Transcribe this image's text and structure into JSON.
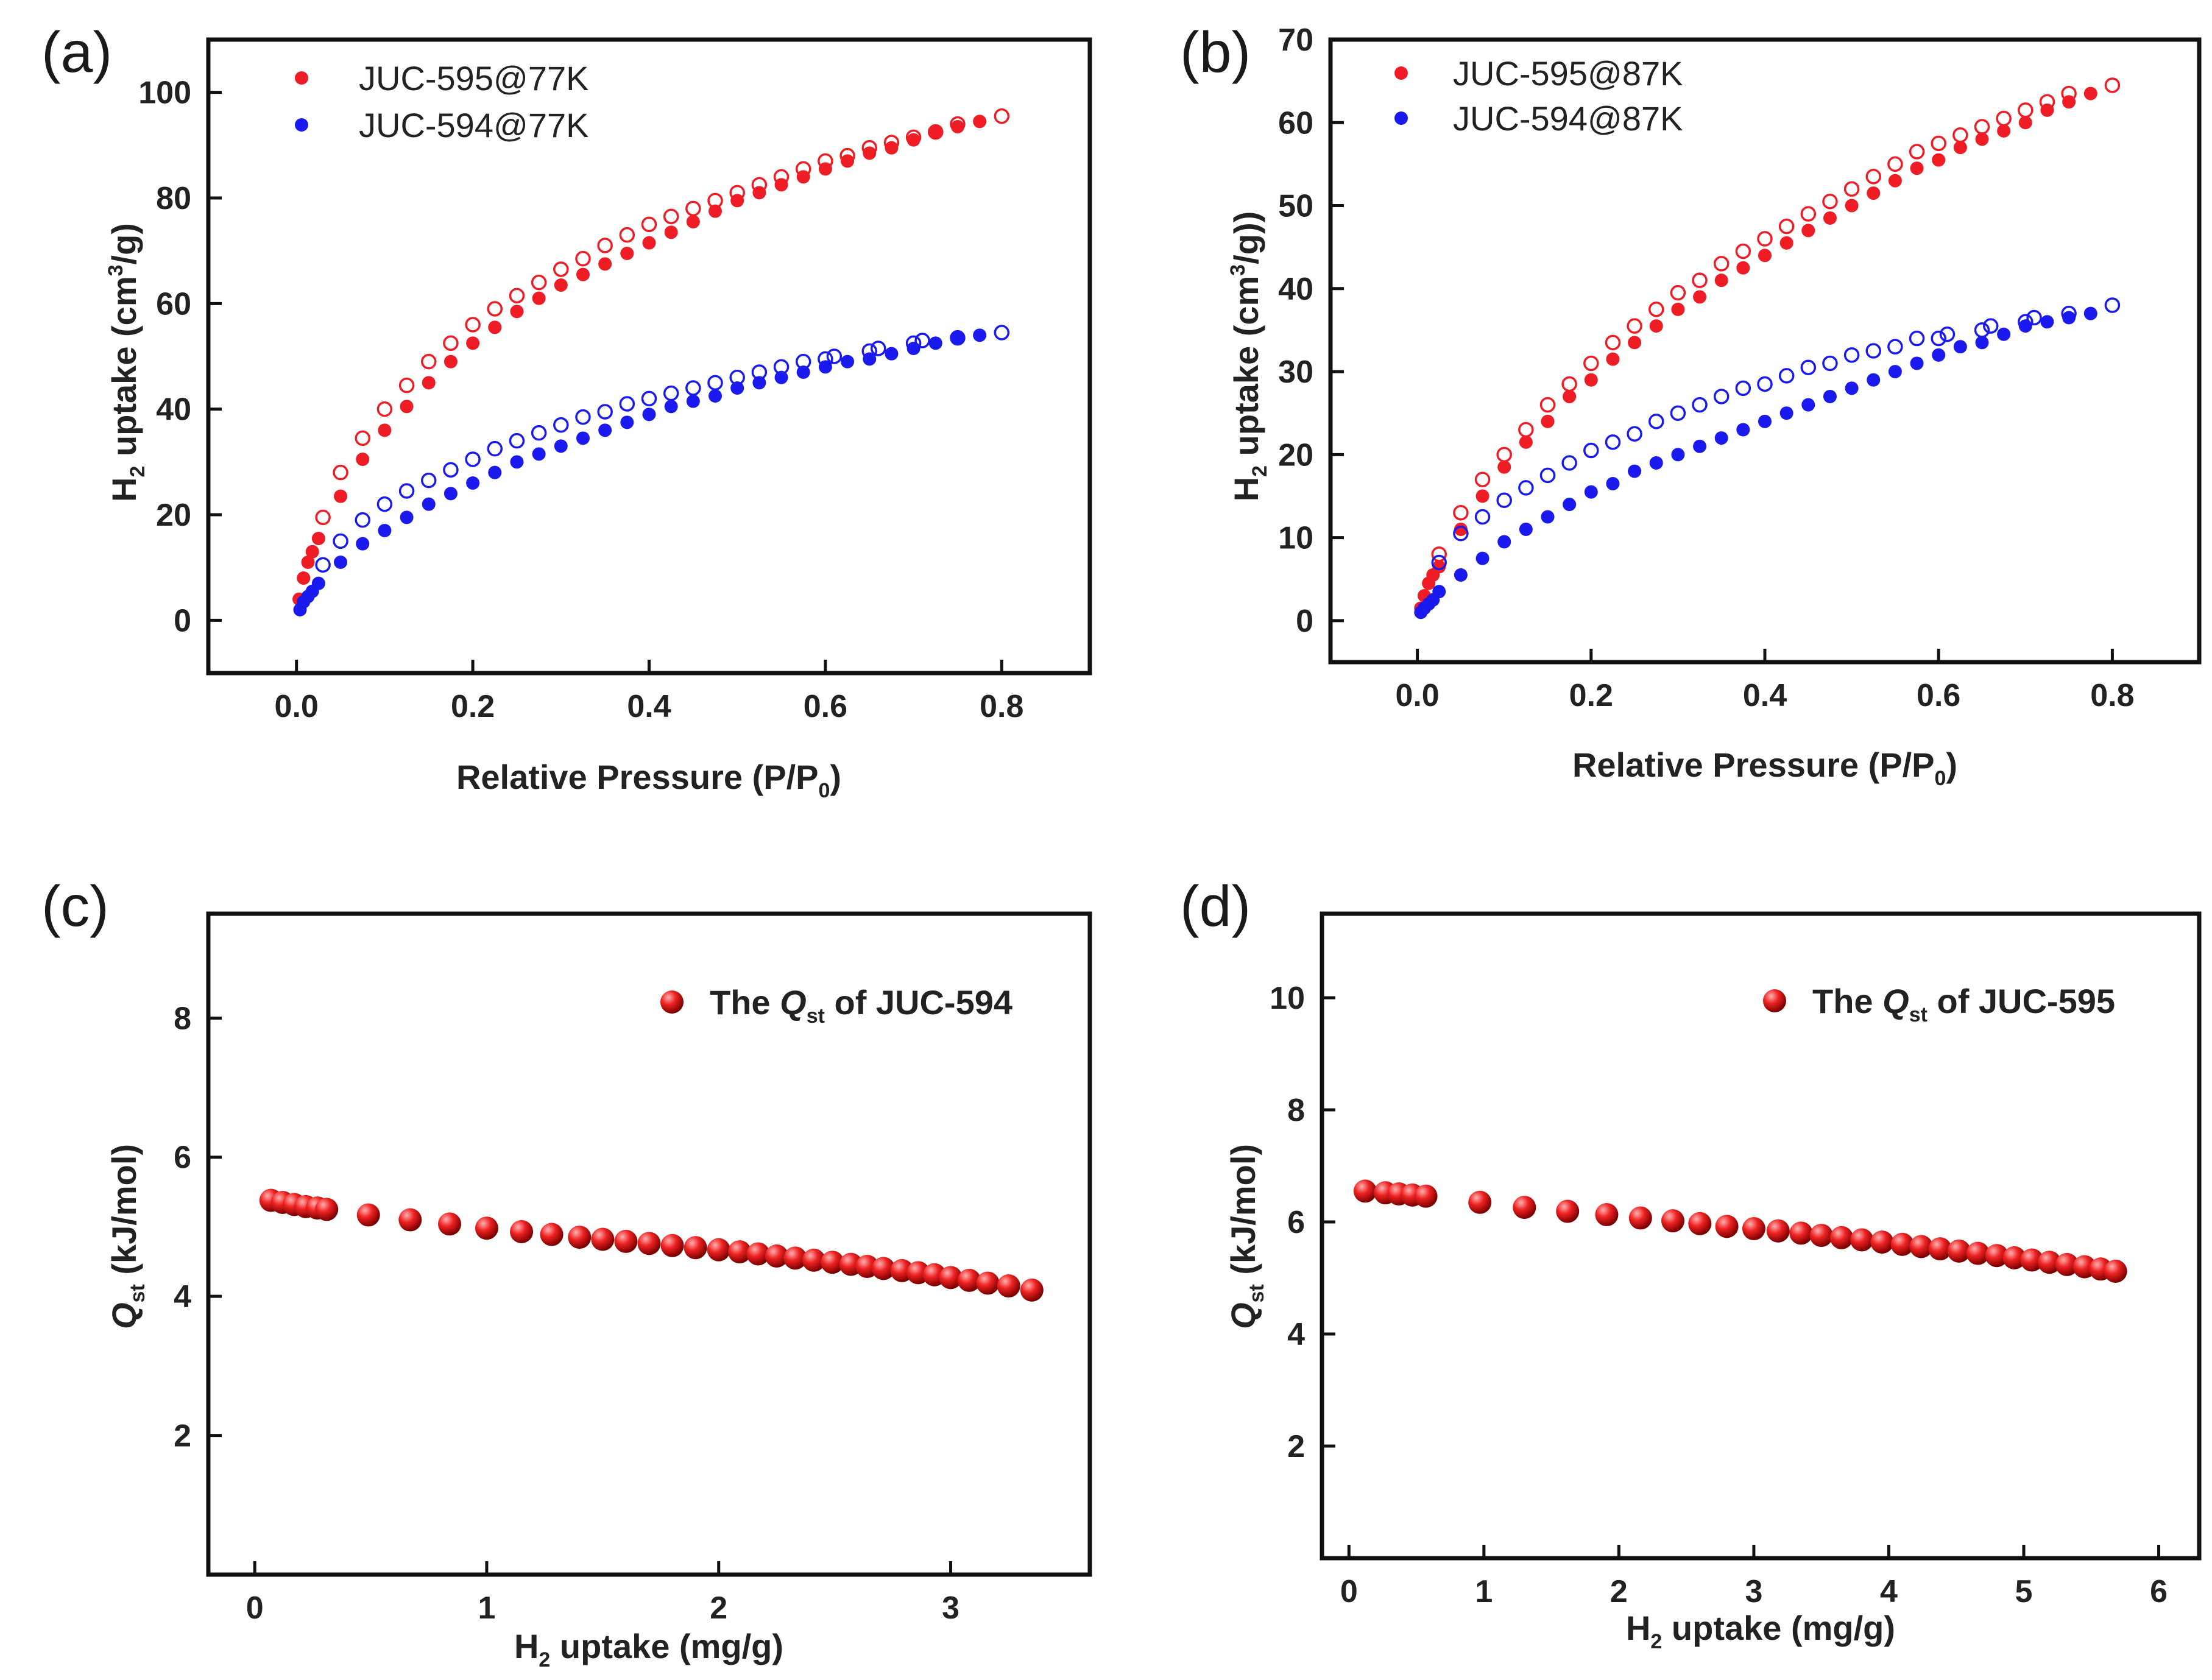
{
  "chart_data": [
    {
      "panel": "(a)",
      "type": "scatter",
      "title": "",
      "xlabel": "Relative Pressure (P/P0)",
      "xlabel_main": "Relative Pressure (P/P",
      "xlabel_sub": "0",
      "xlabel_tail": ")",
      "ylabel": "H2 uptake (cm3/g)",
      "ylabel_pre": "H",
      "ylabel_sub": "2",
      "ylabel_mid": " uptake (cm",
      "ylabel_sup": "3",
      "ylabel_tail": "/g)",
      "xlim": [
        -0.1,
        0.9
      ],
      "ylim": [
        -10,
        110
      ],
      "xticks": [
        0.0,
        0.2,
        0.4,
        0.6,
        0.8
      ],
      "xtick_labels": [
        "0.0",
        "0.2",
        "0.4",
        "0.6",
        "0.8"
      ],
      "yticks": [
        0,
        20,
        40,
        60,
        80,
        100
      ],
      "ytick_labels": [
        "0",
        "20",
        "40",
        "60",
        "80",
        "100"
      ],
      "legend": [
        {
          "label": "JUC-595@77K",
          "color": "#ee1c24"
        },
        {
          "label": "JUC-594@77K",
          "color": "#1a1aee"
        }
      ],
      "series": [
        {
          "name": "JUC-595@77K adsorption",
          "color": "#ee1c24",
          "filled": true,
          "x": [
            0.003,
            0.008,
            0.013,
            0.018,
            0.025,
            0.05,
            0.075,
            0.1,
            0.125,
            0.15,
            0.175,
            0.2,
            0.225,
            0.25,
            0.275,
            0.3,
            0.325,
            0.35,
            0.375,
            0.4,
            0.425,
            0.45,
            0.475,
            0.5,
            0.525,
            0.55,
            0.575,
            0.6,
            0.625,
            0.65,
            0.675,
            0.7,
            0.725,
            0.75,
            0.775
          ],
          "y": [
            4,
            8,
            11,
            13,
            15.5,
            23.5,
            30.5,
            36,
            40.5,
            45,
            49,
            52.5,
            55.5,
            58.5,
            61,
            63.5,
            65.5,
            67.5,
            69.5,
            71.5,
            73.5,
            75.5,
            77.5,
            79.5,
            81,
            82.5,
            84,
            85.5,
            87,
            88.5,
            89.5,
            91,
            92.5,
            93.5,
            94.5
          ]
        },
        {
          "name": "JUC-595@77K desorption",
          "color": "#ee1c24",
          "filled": false,
          "x": [
            0.03,
            0.05,
            0.075,
            0.1,
            0.125,
            0.15,
            0.175,
            0.2,
            0.225,
            0.25,
            0.275,
            0.3,
            0.325,
            0.35,
            0.375,
            0.4,
            0.425,
            0.45,
            0.475,
            0.5,
            0.525,
            0.55,
            0.575,
            0.6,
            0.625,
            0.65,
            0.675,
            0.7,
            0.725,
            0.75,
            0.8
          ],
          "y": [
            19.5,
            28,
            34.5,
            40,
            44.5,
            49,
            52.5,
            56,
            59,
            61.5,
            64,
            66.5,
            68.5,
            71,
            73,
            75,
            76.5,
            78,
            79.5,
            81,
            82.5,
            84,
            85.5,
            87,
            88,
            89.5,
            90.5,
            91.5,
            92.5,
            94,
            95.5
          ]
        },
        {
          "name": "JUC-594@77K adsorption",
          "color": "#1a1aee",
          "filled": true,
          "x": [
            0.004,
            0.008,
            0.013,
            0.018,
            0.025,
            0.05,
            0.075,
            0.1,
            0.125,
            0.15,
            0.175,
            0.2,
            0.225,
            0.25,
            0.275,
            0.3,
            0.325,
            0.35,
            0.375,
            0.4,
            0.425,
            0.45,
            0.475,
            0.5,
            0.525,
            0.55,
            0.575,
            0.6,
            0.625,
            0.65,
            0.675,
            0.7,
            0.725,
            0.75,
            0.775
          ],
          "y": [
            2,
            3.5,
            4.5,
            5.5,
            7,
            11,
            14.5,
            17,
            19.5,
            22,
            24,
            26,
            28,
            30,
            31.5,
            33,
            34.5,
            36,
            37.5,
            39,
            40.5,
            41.5,
            42.5,
            44,
            45,
            46,
            47,
            48,
            49,
            49.5,
            50.5,
            51.5,
            52.5,
            53.5,
            54
          ]
        },
        {
          "name": "JUC-594@77K desorption",
          "color": "#1a1aee",
          "filled": false,
          "x": [
            0.03,
            0.05,
            0.075,
            0.1,
            0.125,
            0.15,
            0.175,
            0.2,
            0.225,
            0.25,
            0.275,
            0.3,
            0.325,
            0.35,
            0.375,
            0.4,
            0.425,
            0.45,
            0.475,
            0.5,
            0.525,
            0.55,
            0.575,
            0.6,
            0.61,
            0.65,
            0.66,
            0.7,
            0.71,
            0.75,
            0.8
          ],
          "y": [
            10.5,
            15,
            19,
            22,
            24.5,
            26.5,
            28.5,
            30.5,
            32.5,
            34,
            35.5,
            37,
            38.5,
            39.5,
            41,
            42,
            43,
            44,
            45,
            46,
            47,
            48,
            49,
            49.5,
            50,
            51,
            51.5,
            52.5,
            53,
            53.5,
            54.5
          ]
        }
      ]
    },
    {
      "panel": "(b)",
      "type": "scatter",
      "title": "",
      "xlabel": "Relative Pressure (P/P0)",
      "xlabel_main": "Relative Pressure (P/P",
      "xlabel_sub": "0",
      "xlabel_tail": ")",
      "ylabel": "H2 uptake (cm3/g))",
      "ylabel_pre": "H",
      "ylabel_sub": "2",
      "ylabel_mid": " uptake (cm",
      "ylabel_sup": "3",
      "ylabel_tail": "/g))",
      "xlim": [
        -0.1,
        0.9
      ],
      "ylim": [
        -5,
        70
      ],
      "xticks": [
        0.0,
        0.2,
        0.4,
        0.6,
        0.8
      ],
      "xtick_labels": [
        "0.0",
        "0.2",
        "0.4",
        "0.6",
        "0.8"
      ],
      "yticks": [
        0,
        10,
        20,
        30,
        40,
        50,
        60,
        70
      ],
      "ytick_labels": [
        "0",
        "10",
        "20",
        "30",
        "40",
        "50",
        "60",
        "70"
      ],
      "legend": [
        {
          "label": "JUC-595@87K",
          "color": "#ee1c24"
        },
        {
          "label": "JUC-594@87K",
          "color": "#1a1aee"
        }
      ],
      "series": [
        {
          "name": "JUC-595@87K adsorption",
          "color": "#ee1c24",
          "filled": true,
          "x": [
            0.004,
            0.008,
            0.013,
            0.018,
            0.025,
            0.05,
            0.075,
            0.1,
            0.125,
            0.15,
            0.175,
            0.2,
            0.225,
            0.25,
            0.275,
            0.3,
            0.325,
            0.35,
            0.375,
            0.4,
            0.425,
            0.45,
            0.475,
            0.5,
            0.525,
            0.55,
            0.575,
            0.6,
            0.625,
            0.65,
            0.675,
            0.7,
            0.725,
            0.75,
            0.775
          ],
          "y": [
            1.5,
            3,
            4.5,
            5.5,
            6.5,
            11,
            15,
            18.5,
            21.5,
            24,
            27,
            29,
            31.5,
            33.5,
            35.5,
            37.5,
            39,
            41,
            42.5,
            44,
            45.5,
            47,
            48.5,
            50,
            51.5,
            53,
            54.5,
            55.5,
            57,
            58,
            59,
            60,
            61.5,
            62.5,
            63.5
          ]
        },
        {
          "name": "JUC-595@87K desorption",
          "color": "#ee1c24",
          "filled": false,
          "x": [
            0.025,
            0.05,
            0.075,
            0.1,
            0.125,
            0.15,
            0.175,
            0.2,
            0.225,
            0.25,
            0.275,
            0.3,
            0.325,
            0.35,
            0.375,
            0.4,
            0.425,
            0.45,
            0.475,
            0.5,
            0.525,
            0.55,
            0.575,
            0.6,
            0.625,
            0.65,
            0.675,
            0.7,
            0.725,
            0.75,
            0.8
          ],
          "y": [
            8,
            13,
            17,
            20,
            23,
            26,
            28.5,
            31,
            33.5,
            35.5,
            37.5,
            39.5,
            41,
            43,
            44.5,
            46,
            47.5,
            49,
            50.5,
            52,
            53.5,
            55,
            56.5,
            57.5,
            58.5,
            59.5,
            60.5,
            61.5,
            62.5,
            63.5,
            64.5
          ]
        },
        {
          "name": "JUC-594@87K adsorption",
          "color": "#1a1aee",
          "filled": true,
          "x": [
            0.004,
            0.008,
            0.013,
            0.018,
            0.025,
            0.05,
            0.075,
            0.1,
            0.125,
            0.15,
            0.175,
            0.2,
            0.225,
            0.25,
            0.275,
            0.3,
            0.325,
            0.35,
            0.375,
            0.4,
            0.425,
            0.45,
            0.475,
            0.5,
            0.525,
            0.55,
            0.575,
            0.6,
            0.625,
            0.65,
            0.675,
            0.7,
            0.725,
            0.75,
            0.775
          ],
          "y": [
            1,
            1.5,
            2,
            2.5,
            3.5,
            5.5,
            7.5,
            9.5,
            11,
            12.5,
            14,
            15.5,
            16.5,
            18,
            19,
            20,
            21,
            22,
            23,
            24,
            25,
            26,
            27,
            28,
            29,
            30,
            31,
            32,
            33,
            33.5,
            34.5,
            35.5,
            36,
            36.5,
            37
          ]
        },
        {
          "name": "JUC-594@87K desorption",
          "color": "#1a1aee",
          "filled": false,
          "x": [
            0.025,
            0.05,
            0.075,
            0.1,
            0.125,
            0.15,
            0.175,
            0.2,
            0.225,
            0.25,
            0.275,
            0.3,
            0.325,
            0.35,
            0.375,
            0.4,
            0.425,
            0.45,
            0.475,
            0.5,
            0.525,
            0.55,
            0.575,
            0.6,
            0.61,
            0.65,
            0.66,
            0.7,
            0.71,
            0.75,
            0.8
          ],
          "y": [
            7,
            10.5,
            12.5,
            14.5,
            16,
            17.5,
            19,
            20.5,
            21.5,
            22.5,
            24,
            25,
            26,
            27,
            28,
            28.5,
            29.5,
            30.5,
            31,
            32,
            32.5,
            33,
            34,
            34,
            34.5,
            35,
            35.5,
            36,
            36.5,
            37,
            38
          ]
        }
      ]
    },
    {
      "panel": "(c)",
      "type": "scatter",
      "title": "",
      "xlabel": "H2 uptake (mg/g)",
      "xlabel_pre": "H",
      "xlabel_sub": "2",
      "xlabel_tail": " uptake (mg/g)",
      "ylabel": "Qst (kJ/mol)",
      "ylabel_q": "Q",
      "ylabel_sub": "st",
      "ylabel_tail": " (kJ/mol)",
      "xlim": [
        -0.2,
        3.6
      ],
      "ylim": [
        0,
        9.5
      ],
      "xticks": [
        0,
        1,
        2,
        3
      ],
      "xtick_labels": [
        "0",
        "1",
        "2",
        "3"
      ],
      "yticks": [
        2,
        4,
        6,
        8
      ],
      "ytick_labels": [
        "2",
        "4",
        "6",
        "8"
      ],
      "legend": [
        {
          "label": "The Qst of JUC-594",
          "prefix": "The ",
          "q": "Q",
          "sub": "st",
          "suffix": " of JUC-594",
          "color": "#dd1111"
        }
      ],
      "series": [
        {
          "name": "The Qst of JUC-594",
          "color": "#dd1111",
          "filled": true,
          "x": [
            0.07,
            0.12,
            0.17,
            0.22,
            0.27,
            0.31,
            0.49,
            0.67,
            0.84,
            1.0,
            1.15,
            1.28,
            1.4,
            1.5,
            1.6,
            1.7,
            1.8,
            1.9,
            2.0,
            2.09,
            2.17,
            2.25,
            2.33,
            2.41,
            2.49,
            2.57,
            2.64,
            2.71,
            2.79,
            2.86,
            2.93,
            3.0,
            3.08,
            3.16,
            3.25,
            3.35
          ],
          "y": [
            5.38,
            5.35,
            5.32,
            5.29,
            5.27,
            5.25,
            5.17,
            5.1,
            5.04,
            4.98,
            4.93,
            4.89,
            4.85,
            4.82,
            4.79,
            4.76,
            4.73,
            4.7,
            4.67,
            4.64,
            4.61,
            4.58,
            4.55,
            4.52,
            4.49,
            4.46,
            4.43,
            4.4,
            4.37,
            4.34,
            4.31,
            4.27,
            4.23,
            4.19,
            4.15,
            4.09
          ]
        }
      ]
    },
    {
      "panel": "(d)",
      "type": "scatter",
      "title": "",
      "xlabel": "H2 uptake (mg/g)",
      "xlabel_pre": "H",
      "xlabel_sub": "2",
      "xlabel_tail": " uptake (mg/g)",
      "ylabel": "Qst (kJ/mol)",
      "ylabel_q": "Q",
      "ylabel_sub": "st",
      "ylabel_tail": " (kJ/mol)",
      "xlim": [
        -0.2,
        6.3
      ],
      "ylim": [
        0,
        11.5
      ],
      "xticks": [
        0,
        1,
        2,
        3,
        4,
        5,
        6
      ],
      "xtick_labels": [
        "0",
        "1",
        "2",
        "3",
        "4",
        "5",
        "6"
      ],
      "yticks": [
        2,
        4,
        6,
        8,
        10
      ],
      "ytick_labels": [
        "2",
        "4",
        "6",
        "8",
        "10"
      ],
      "legend": [
        {
          "label": "The Qst of JUC-595",
          "prefix": "The ",
          "q": "Q",
          "sub": "st",
          "suffix": " of JUC-595",
          "color": "#dd1111"
        }
      ],
      "series": [
        {
          "name": "The Qst of JUC-595",
          "color": "#dd1111",
          "filled": true,
          "x": [
            0.12,
            0.27,
            0.37,
            0.47,
            0.57,
            0.97,
            1.3,
            1.62,
            1.91,
            2.16,
            2.4,
            2.6,
            2.8,
            3.0,
            3.18,
            3.35,
            3.5,
            3.65,
            3.8,
            3.95,
            4.1,
            4.24,
            4.38,
            4.52,
            4.66,
            4.8,
            4.93,
            5.06,
            5.19,
            5.32,
            5.45,
            5.57,
            5.68
          ],
          "y": [
            6.55,
            6.52,
            6.5,
            6.48,
            6.46,
            6.35,
            6.26,
            6.19,
            6.13,
            6.07,
            6.02,
            5.97,
            5.92,
            5.88,
            5.84,
            5.8,
            5.76,
            5.72,
            5.68,
            5.64,
            5.6,
            5.56,
            5.52,
            5.48,
            5.44,
            5.4,
            5.36,
            5.32,
            5.28,
            5.24,
            5.2,
            5.16,
            5.12
          ]
        }
      ]
    }
  ]
}
